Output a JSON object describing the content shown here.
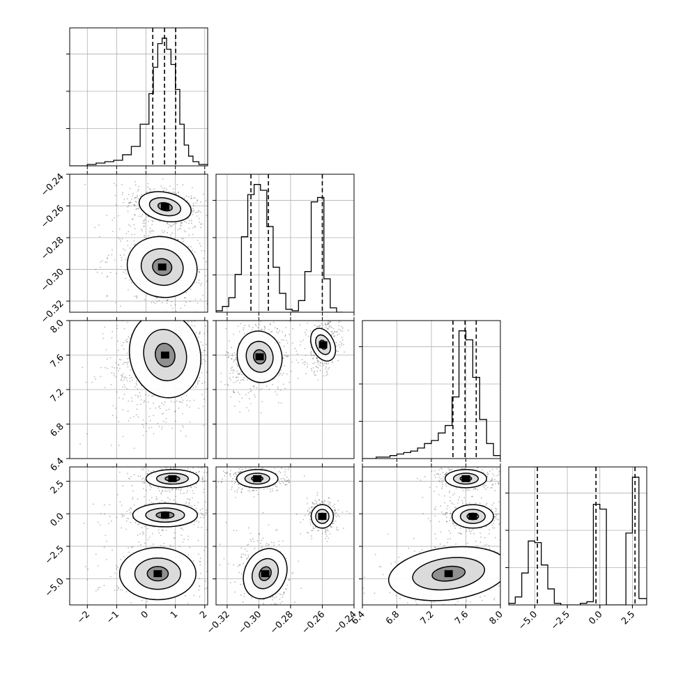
{
  "chart_data": {
    "type": "scatter",
    "subtype": "corner",
    "title": "",
    "parameters": [
      {
        "label": "",
        "range": [
          -2.6,
          2.1
        ],
        "ticks": [
          -2,
          -1,
          0,
          1,
          2
        ],
        "tick_labels": [
          "−2",
          "−1",
          "0",
          "1",
          "2"
        ]
      },
      {
        "label": "",
        "range": [
          -0.327,
          -0.24
        ],
        "ticks": [
          -0.32,
          -0.3,
          -0.28,
          -0.26,
          -0.24
        ],
        "tick_labels": [
          "−0.32",
          "−0.30",
          "−0.28",
          "−0.26",
          "−0.24"
        ]
      },
      {
        "label": "",
        "range": [
          6.4,
          8.0
        ],
        "ticks": [
          6.4,
          6.8,
          7.2,
          7.6,
          8.0
        ],
        "tick_labels": [
          "6.4",
          "6.8",
          "7.2",
          "7.6",
          "8.0"
        ]
      },
      {
        "label": "",
        "range": [
          -7.0,
          3.6
        ],
        "ticks": [
          -5.0,
          -2.5,
          0.0,
          2.5
        ],
        "tick_labels": [
          "−5.0",
          "−2.5",
          "0.0",
          "2.5"
        ]
      }
    ],
    "quantiles": [
      [
        0.23,
        0.63,
        1.01
      ],
      [
        -0.305,
        -0.294,
        -0.26
      ],
      [
        7.45,
        7.59,
        7.72
      ],
      [
        -4.8,
        -0.3,
        2.7
      ]
    ],
    "histograms": [
      {
        "edges": [
          -2.6,
          -2.3,
          -2.0,
          -1.7,
          -1.4,
          -1.1,
          -0.8,
          -0.5,
          -0.2,
          0.1,
          0.25,
          0.4,
          0.55,
          0.7,
          0.85,
          1.0,
          1.15,
          1.3,
          1.45,
          1.6,
          1.8,
          2.1
        ],
        "counts": [
          0,
          0,
          1,
          2,
          3,
          4,
          8,
          14,
          30,
          52,
          71,
          88,
          92,
          84,
          73,
          55,
          30,
          15,
          7,
          3,
          1
        ]
      },
      {
        "edges": [
          -0.327,
          -0.323,
          -0.319,
          -0.315,
          -0.311,
          -0.307,
          -0.303,
          -0.299,
          -0.295,
          -0.291,
          -0.287,
          -0.283,
          -0.279,
          -0.275,
          -0.271,
          -0.267,
          -0.263,
          -0.259,
          -0.255,
          -0.251,
          -0.247
        ],
        "counts": [
          1,
          4,
          10,
          26,
          52,
          81,
          88,
          84,
          59,
          31,
          13,
          2,
          1,
          8,
          28,
          76,
          79,
          23,
          3,
          0
        ]
      },
      {
        "edges": [
          6.4,
          6.48,
          6.56,
          6.64,
          6.72,
          6.8,
          6.88,
          6.96,
          7.04,
          7.12,
          7.2,
          7.28,
          7.36,
          7.44,
          7.52,
          7.6,
          7.68,
          7.76,
          7.84,
          7.92,
          8.0
        ],
        "counts": [
          0,
          0,
          1,
          1,
          2,
          3,
          4,
          5,
          7,
          10,
          12,
          17,
          22,
          41,
          85,
          79,
          54,
          26,
          10,
          2
        ]
      },
      {
        "edges": [
          -7.0,
          -6.5,
          -6.0,
          -5.5,
          -5.0,
          -4.5,
          -4.0,
          -3.5,
          -3.0,
          -2.5,
          -2.0,
          -1.5,
          -1.0,
          -0.5,
          0.0,
          0.5,
          1.0,
          1.5,
          2.0,
          2.5,
          3.0,
          3.6
        ],
        "counts": [
          1,
          5,
          20,
          40,
          39,
          25,
          10,
          1,
          0,
          0,
          0,
          1,
          2,
          63,
          60,
          0,
          0,
          0,
          45,
          80,
          4
        ]
      }
    ],
    "joint_clusters": [
      {
        "pair": [
          0,
          1
        ],
        "clusters": [
          {
            "center": [
              0.65,
              -0.2605
            ],
            "spread": [
              0.45,
              0.0045
            ],
            "weight": 0.45,
            "tilt": -0.4
          },
          {
            "center": [
              0.55,
              -0.2985
            ],
            "spread": [
              0.6,
              0.0095
            ],
            "weight": 0.55,
            "tilt": -0.3
          }
        ]
      },
      {
        "pair": [
          0,
          2
        ],
        "clusters": [
          {
            "center": [
              0.65,
              7.6
            ],
            "spread": [
              0.6,
              0.25
            ],
            "weight": 1.0,
            "tilt": 0.2
          }
        ]
      },
      {
        "pair": [
          1,
          2
        ],
        "clusters": [
          {
            "center": [
              -0.2995,
              7.58
            ],
            "spread": [
              0.007,
              0.15
            ],
            "weight": 0.55,
            "tilt": 0.2
          },
          {
            "center": [
              -0.2595,
              7.72
            ],
            "spread": [
              0.0035,
              0.1
            ],
            "weight": 0.45,
            "tilt": 0.3
          }
        ]
      },
      {
        "pair": [
          0,
          3
        ],
        "clusters": [
          {
            "center": [
              0.9,
              2.7
            ],
            "spread": [
              0.45,
              0.35
            ],
            "weight": 0.34,
            "tilt": 0
          },
          {
            "center": [
              0.65,
              -0.1
            ],
            "spread": [
              0.55,
              0.45
            ],
            "weight": 0.33,
            "tilt": 0
          },
          {
            "center": [
              0.4,
              -4.6
            ],
            "spread": [
              0.65,
              1.0
            ],
            "weight": 0.33,
            "tilt": 0
          }
        ]
      },
      {
        "pair": [
          1,
          3
        ],
        "clusters": [
          {
            "center": [
              -0.301,
              2.7
            ],
            "spread": [
              0.0065,
              0.35
            ],
            "weight": 0.34,
            "tilt": 0
          },
          {
            "center": [
              -0.26,
              -0.2
            ],
            "spread": [
              0.0035,
              0.45
            ],
            "weight": 0.33,
            "tilt": 0
          },
          {
            "center": [
              -0.296,
              -4.6
            ],
            "spread": [
              0.0065,
              1.0
            ],
            "weight": 0.33,
            "tilt": -0.4
          }
        ]
      },
      {
        "pair": [
          2,
          3
        ],
        "clusters": [
          {
            "center": [
              7.6,
              2.7
            ],
            "spread": [
              0.12,
              0.35
            ],
            "weight": 0.34,
            "tilt": 0
          },
          {
            "center": [
              7.68,
              -0.2
            ],
            "spread": [
              0.12,
              0.45
            ],
            "weight": 0.33,
            "tilt": 0
          },
          {
            "center": [
              7.4,
              -4.6
            ],
            "spread": [
              0.35,
              1.0
            ],
            "weight": 0.33,
            "tilt": 0.3
          }
        ]
      }
    ],
    "grid": true,
    "colors": {
      "hist_line": "#000000",
      "points": "#000000",
      "density": "#000000",
      "grid": "#b0b0b0"
    }
  }
}
